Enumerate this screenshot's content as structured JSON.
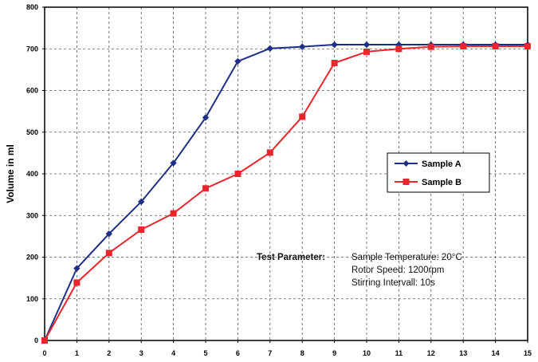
{
  "chart_data": {
    "type": "line",
    "title": "",
    "xlabel": "",
    "ylabel": "Volume in ml",
    "xlim": [
      0,
      15
    ],
    "ylim": [
      0,
      800
    ],
    "x_ticks": [
      0,
      1,
      2,
      3,
      4,
      5,
      6,
      7,
      8,
      9,
      10,
      11,
      12,
      13,
      14,
      15
    ],
    "y_ticks": [
      0,
      100,
      200,
      300,
      400,
      500,
      600,
      700,
      800
    ],
    "grid": "dashed",
    "legend_position": "right-middle",
    "series": [
      {
        "name": "Sample A",
        "color": "#1f2f86",
        "marker": "diamond",
        "x": [
          0,
          1,
          2,
          3,
          4,
          5,
          6,
          7,
          8,
          9,
          10,
          11,
          12,
          13,
          14,
          15
        ],
        "values": [
          0,
          173,
          256,
          333,
          426,
          535,
          670,
          701,
          705,
          710,
          710,
          710,
          710,
          710,
          710,
          710
        ]
      },
      {
        "name": "Sample B",
        "color": "#e8262b",
        "marker": "square",
        "x": [
          0,
          1,
          2,
          3,
          4,
          5,
          6,
          7,
          8,
          9,
          10,
          11,
          12,
          13,
          14,
          15
        ],
        "values": [
          0,
          139,
          210,
          266,
          305,
          365,
          400,
          451,
          537,
          666,
          693,
          700,
          705,
          706,
          706,
          706
        ]
      }
    ],
    "annotation": {
      "heading": "Test Parameter:",
      "lines": [
        "Sample Temperature: 20°C",
        "Rotor Speed: 1200rpm",
        "Stirring Intervall: 10s"
      ]
    }
  }
}
